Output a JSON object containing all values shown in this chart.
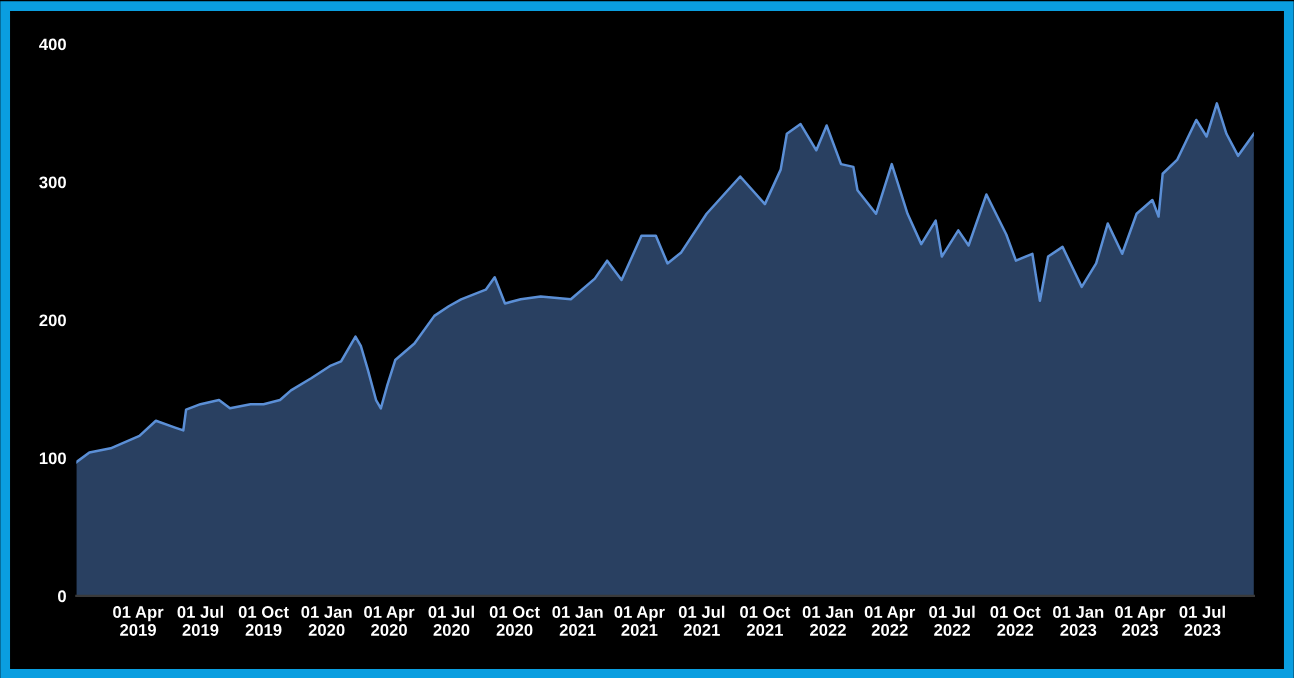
{
  "chart_data": {
    "type": "area",
    "xlim": [
      "2019-01-01",
      "2023-09-14"
    ],
    "ylim": [
      0,
      400
    ],
    "yticks": [
      0,
      100,
      200,
      300,
      400
    ],
    "xticks": [
      {
        "value": "2019-04-01",
        "label": "01 Apr\n2019"
      },
      {
        "value": "2019-07-01",
        "label": "01 Jul\n2019"
      },
      {
        "value": "2019-10-01",
        "label": "01 Oct\n2019"
      },
      {
        "value": "2020-01-01",
        "label": "01 Jan\n2020"
      },
      {
        "value": "2020-04-01",
        "label": "01 Apr\n2020"
      },
      {
        "value": "2020-07-01",
        "label": "01 Jul\n2020"
      },
      {
        "value": "2020-10-01",
        "label": "01 Oct\n2020"
      },
      {
        "value": "2021-01-01",
        "label": "01 Jan\n2021"
      },
      {
        "value": "2021-04-01",
        "label": "01 Apr\n2021"
      },
      {
        "value": "2021-07-01",
        "label": "01 Jul\n2021"
      },
      {
        "value": "2021-10-01",
        "label": "01 Oct\n2021"
      },
      {
        "value": "2022-01-01",
        "label": "01 Jan\n2022"
      },
      {
        "value": "2022-04-01",
        "label": "01 Apr\n2022"
      },
      {
        "value": "2022-07-01",
        "label": "01 Jul\n2022"
      },
      {
        "value": "2022-10-01",
        "label": "01 Oct\n2022"
      },
      {
        "value": "2023-01-01",
        "label": "01 Jan\n2023"
      },
      {
        "value": "2023-04-01",
        "label": "01 Apr\n2023"
      },
      {
        "value": "2023-07-01",
        "label": "01 Jul\n2023"
      }
    ],
    "grid": false,
    "x": [
      "2019-01-01",
      "2019-01-20",
      "2019-02-20",
      "2019-04-03",
      "2019-04-27",
      "2019-05-25",
      "2019-06-06",
      "2019-06-10",
      "2019-07-01",
      "2019-07-28",
      "2019-08-13",
      "2019-09-12",
      "2019-10-01",
      "2019-10-25",
      "2019-11-10",
      "2019-12-10",
      "2020-01-07",
      "2020-01-22",
      "2020-02-12",
      "2020-02-20",
      "2020-03-01",
      "2020-03-13",
      "2020-03-20",
      "2020-03-29",
      "2020-04-10",
      "2020-05-08",
      "2020-06-06",
      "2020-06-27",
      "2020-07-15",
      "2020-08-20",
      "2020-09-02",
      "2020-09-17",
      "2020-10-10",
      "2020-11-08",
      "2020-12-22",
      "2021-01-26",
      "2021-02-13",
      "2021-03-06",
      "2021-04-04",
      "2021-04-25",
      "2021-05-12",
      "2021-06-01",
      "2021-07-08",
      "2021-08-26",
      "2021-10-01",
      "2021-10-24",
      "2021-11-02",
      "2021-11-22",
      "2021-12-15",
      "2021-12-30",
      "2022-01-20",
      "2022-02-07",
      "2022-02-13",
      "2022-03-12",
      "2022-04-04",
      "2022-04-27",
      "2022-05-17",
      "2022-06-07",
      "2022-06-16",
      "2022-07-10",
      "2022-07-25",
      "2022-08-20",
      "2022-09-18",
      "2022-10-02",
      "2022-10-26",
      "2022-11-06",
      "2022-11-18",
      "2022-12-09",
      "2023-01-06",
      "2023-01-27",
      "2023-02-13",
      "2023-03-06",
      "2023-03-27",
      "2023-04-19",
      "2023-04-28",
      "2023-05-04",
      "2023-05-25",
      "2023-06-22",
      "2023-07-07",
      "2023-07-22",
      "2023-08-05",
      "2023-08-22",
      "2023-09-14"
    ],
    "series": [
      {
        "color": "#5b8fd6",
        "values": [
          97,
          104,
          107,
          116,
          127,
          122,
          120,
          135,
          139,
          142,
          136,
          139,
          139,
          142,
          149,
          158,
          167,
          170,
          188,
          181,
          164,
          142,
          136,
          152,
          171,
          183,
          203,
          210,
          215,
          222,
          231,
          212,
          215,
          217,
          215,
          230,
          243,
          229,
          261,
          261,
          241,
          249,
          277,
          304,
          284,
          309,
          335,
          342,
          323,
          341,
          313,
          311,
          294,
          277,
          313,
          277,
          255,
          272,
          246,
          265,
          254,
          291,
          262,
          243,
          248,
          214,
          246,
          253,
          224,
          241,
          270,
          248,
          277,
          287,
          275,
          306,
          316,
          345,
          333,
          357,
          335,
          319,
          335
        ]
      }
    ]
  }
}
